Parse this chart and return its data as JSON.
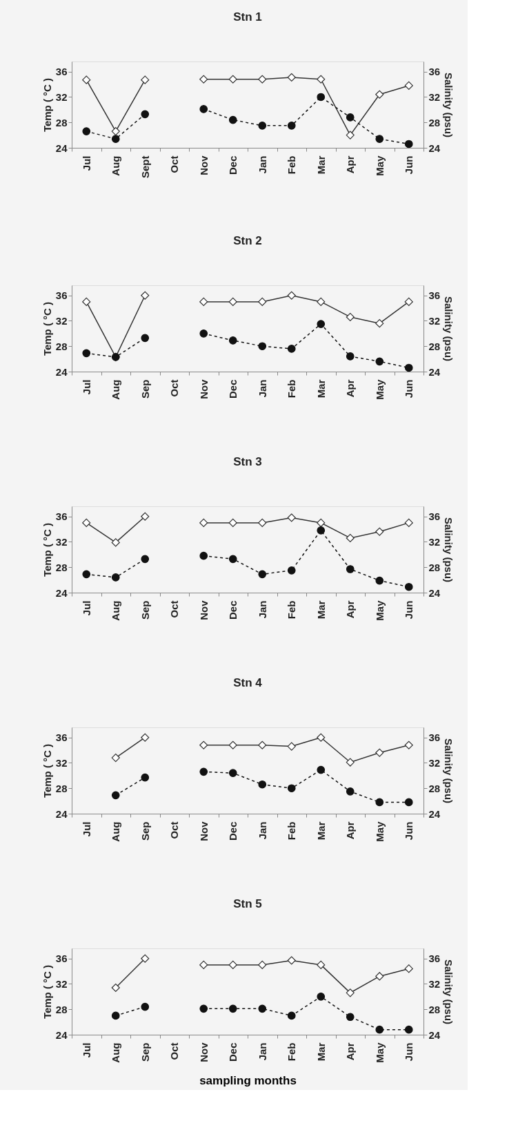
{
  "chart_data": [
    {
      "type": "line",
      "title": "Stn 1",
      "categories": [
        "Jul",
        "Aug",
        "Sept",
        "Oct",
        "Nov",
        "Dec",
        "Jan",
        "Feb",
        "Mar",
        "Apr",
        "May",
        "Jun"
      ],
      "ylabel": "Temp ( °C )",
      "y2label": "Salinity (psu)",
      "ylim": [
        24,
        37.6
      ],
      "yticks": [
        24,
        28,
        32,
        36
      ],
      "y2lim": [
        24,
        37.6
      ],
      "y2ticks": [
        24,
        28,
        32,
        36
      ],
      "grid": false,
      "series": [
        {
          "color": "#111111",
          "marker": "circle",
          "line_style": "dashed",
          "values": [
            26.6,
            25.4,
            29.3,
            null,
            30.1,
            28.4,
            27.5,
            27.5,
            32.0,
            28.8,
            25.4,
            24.6
          ]
        },
        {
          "color": "#333333",
          "marker": "diamond",
          "line_style": "solid",
          "axis": "y2",
          "values": [
            34.7,
            26.6,
            34.7,
            null,
            34.8,
            34.8,
            34.8,
            35.1,
            34.8,
            26.0,
            32.4,
            33.8
          ]
        }
      ]
    },
    {
      "type": "line",
      "title": "Stn 2",
      "categories": [
        "Jul",
        "Aug",
        "Sep",
        "Oct",
        "Nov",
        "Dec",
        "Jan",
        "Feb",
        "Mar",
        "Apr",
        "May",
        "Jun"
      ],
      "ylabel": "Temp ( °C )",
      "y2label": "Salinity (psu)",
      "ylim": [
        24,
        37.6
      ],
      "yticks": [
        24,
        28,
        32,
        36
      ],
      "y2lim": [
        24,
        37.6
      ],
      "y2ticks": [
        24,
        28,
        32,
        36
      ],
      "grid": false,
      "series": [
        {
          "color": "#111111",
          "marker": "circle",
          "line_style": "dashed",
          "values": [
            26.9,
            26.3,
            29.3,
            null,
            30.0,
            28.9,
            28.0,
            27.6,
            31.5,
            26.4,
            25.6,
            24.6
          ]
        },
        {
          "color": "#333333",
          "marker": "diamond",
          "line_style": "solid",
          "axis": "y2",
          "values": [
            35.0,
            26.3,
            36.0,
            null,
            35.0,
            35.0,
            35.0,
            36.0,
            35.0,
            32.6,
            31.6,
            35.0
          ]
        }
      ]
    },
    {
      "type": "line",
      "title": "Stn 3",
      "categories": [
        "Jul",
        "Aug",
        "Sep",
        "Oct",
        "Nov",
        "Dec",
        "Jan",
        "Feb",
        "Mar",
        "Apr",
        "May",
        "Jun"
      ],
      "ylabel": "Temp ( °C )",
      "y2label": "Salinity (psu)",
      "ylim": [
        24,
        37.6
      ],
      "yticks": [
        24,
        28,
        32,
        36
      ],
      "y2lim": [
        24,
        37.6
      ],
      "y2ticks": [
        24,
        28,
        32,
        36
      ],
      "grid": false,
      "series": [
        {
          "color": "#111111",
          "marker": "circle",
          "line_style": "dashed",
          "values": [
            26.9,
            26.4,
            29.3,
            null,
            29.8,
            29.3,
            26.9,
            27.5,
            33.8,
            27.7,
            25.9,
            24.9
          ]
        },
        {
          "color": "#333333",
          "marker": "diamond",
          "line_style": "solid",
          "axis": "y2",
          "values": [
            35.0,
            31.9,
            36.0,
            null,
            35.0,
            35.0,
            35.0,
            35.8,
            35.0,
            32.6,
            33.6,
            35.0
          ]
        }
      ]
    },
    {
      "type": "line",
      "title": "Stn 4",
      "categories": [
        "Jul",
        "Aug",
        "Sep",
        "Oct",
        "Nov",
        "Dec",
        "Jan",
        "Feb",
        "Mar",
        "Apr",
        "May",
        "Jun"
      ],
      "ylabel": "Temp ( °C )",
      "y2label": "Salinity (psu)",
      "ylim": [
        24,
        37.6
      ],
      "yticks": [
        24,
        28,
        32,
        36
      ],
      "y2lim": [
        24,
        37.6
      ],
      "y2ticks": [
        24,
        28,
        32,
        36
      ],
      "grid": false,
      "series": [
        {
          "color": "#111111",
          "marker": "circle",
          "line_style": "dashed",
          "values": [
            null,
            26.9,
            29.7,
            null,
            30.6,
            30.4,
            28.6,
            28.0,
            30.9,
            27.5,
            25.8,
            25.8
          ]
        },
        {
          "color": "#333333",
          "marker": "diamond",
          "line_style": "solid",
          "axis": "y2",
          "values": [
            null,
            32.8,
            36.0,
            null,
            34.8,
            34.8,
            34.8,
            34.6,
            36.0,
            32.1,
            33.6,
            34.8
          ]
        }
      ]
    },
    {
      "type": "line",
      "title": "Stn 5",
      "categories": [
        "Jul",
        "Aug",
        "Sep",
        "Oct",
        "Nov",
        "Dec",
        "Jan",
        "Feb",
        "Mar",
        "Apr",
        "May",
        "Jun"
      ],
      "xlabel": "sampling months",
      "ylabel": "Temp ( °C )",
      "y2label": "Salinity (psu)",
      "ylim": [
        24,
        37.6
      ],
      "yticks": [
        24,
        28,
        32,
        36
      ],
      "y2lim": [
        24,
        37.6
      ],
      "y2ticks": [
        24,
        28,
        32,
        36
      ],
      "grid": false,
      "series": [
        {
          "color": "#111111",
          "marker": "circle",
          "line_style": "dashed",
          "values": [
            null,
            27.0,
            28.4,
            null,
            28.1,
            28.1,
            28.1,
            27.0,
            30.0,
            26.8,
            24.8,
            24.8
          ]
        },
        {
          "color": "#333333",
          "marker": "diamond",
          "line_style": "solid",
          "axis": "y2",
          "values": [
            null,
            31.4,
            36.0,
            null,
            35.0,
            35.0,
            35.0,
            35.7,
            35.0,
            30.6,
            33.2,
            34.4
          ]
        }
      ]
    }
  ]
}
